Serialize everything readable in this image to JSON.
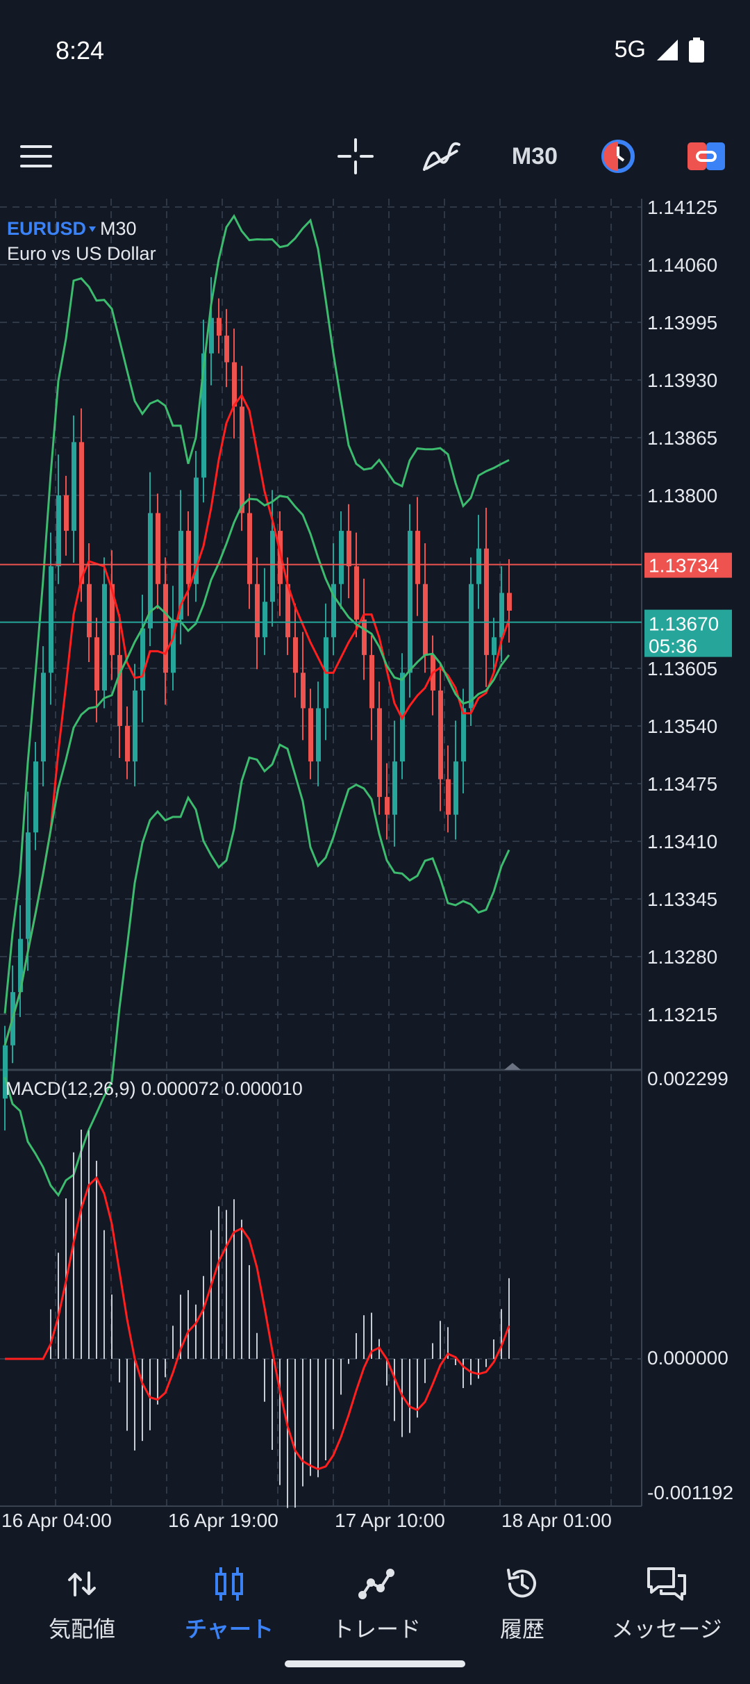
{
  "status_bar": {
    "time": "8:24",
    "network": "5G"
  },
  "toolbar": {
    "timeframe": "M30"
  },
  "chart": {
    "symbol": "EURUSD",
    "timeframe": "M30",
    "description": "Euro vs US Dollar",
    "price_ticks": [
      "1.14125",
      "1.14060",
      "1.13995",
      "1.13930",
      "1.13865",
      "1.13800",
      "1.13605",
      "1.13540",
      "1.13475",
      "1.13410",
      "1.13345",
      "1.13280",
      "1.13215"
    ],
    "ask_price": "1.13734",
    "bid_price": "1.13670",
    "countdown": "05:36",
    "macd_label": "MACD(12,26,9) 0.000072 0.000010",
    "macd_ticks": [
      "0.002299",
      "0.000000",
      "-0.001192"
    ],
    "time_labels": [
      "16 Apr 04:00",
      "16 Apr 19:00",
      "17 Apr 10:00",
      "18 Apr 01:00"
    ],
    "colors": {
      "up": "#26a69a",
      "down": "#ef5350",
      "bollinger": "#3dbb6e",
      "ma": "#ff1f1f",
      "ask_bg": "#ef5350",
      "bid_bg": "#26a69a"
    }
  },
  "chart_data": {
    "type": "candlestick",
    "series": [
      {
        "name": "price",
        "values": [
          1.1318,
          1.1324,
          1.133,
          1.1342,
          1.135,
          1.136,
          1.1372,
          1.138,
          1.1376,
          1.1386,
          1.137,
          1.1364,
          1.1358,
          1.137,
          1.1362,
          1.1354,
          1.135,
          1.1358,
          1.1365,
          1.1378,
          1.137,
          1.136,
          1.1366,
          1.1376,
          1.137,
          1.1382,
          1.1396,
          1.14,
          1.1398,
          1.1395,
          1.139,
          1.1378,
          1.137,
          1.1364,
          1.1368,
          1.1376,
          1.137,
          1.1364,
          1.136,
          1.1356,
          1.135,
          1.1356,
          1.1364,
          1.137,
          1.1376,
          1.1372,
          1.1366,
          1.1362,
          1.1356,
          1.1346,
          1.1344,
          1.135,
          1.136,
          1.1376,
          1.137,
          1.1362,
          1.1358,
          1.1348,
          1.1344,
          1.135,
          1.1356,
          1.137,
          1.1374,
          1.1362,
          1.1364,
          1.1369,
          1.1367
        ]
      }
    ],
    "macd_histogram_range": [
      -0.001192,
      0.002299
    ]
  },
  "bottom_nav": {
    "items": [
      {
        "label": "気配値"
      },
      {
        "label": "チャート"
      },
      {
        "label": "トレード"
      },
      {
        "label": "履歴"
      },
      {
        "label": "メッセージ"
      }
    ]
  }
}
